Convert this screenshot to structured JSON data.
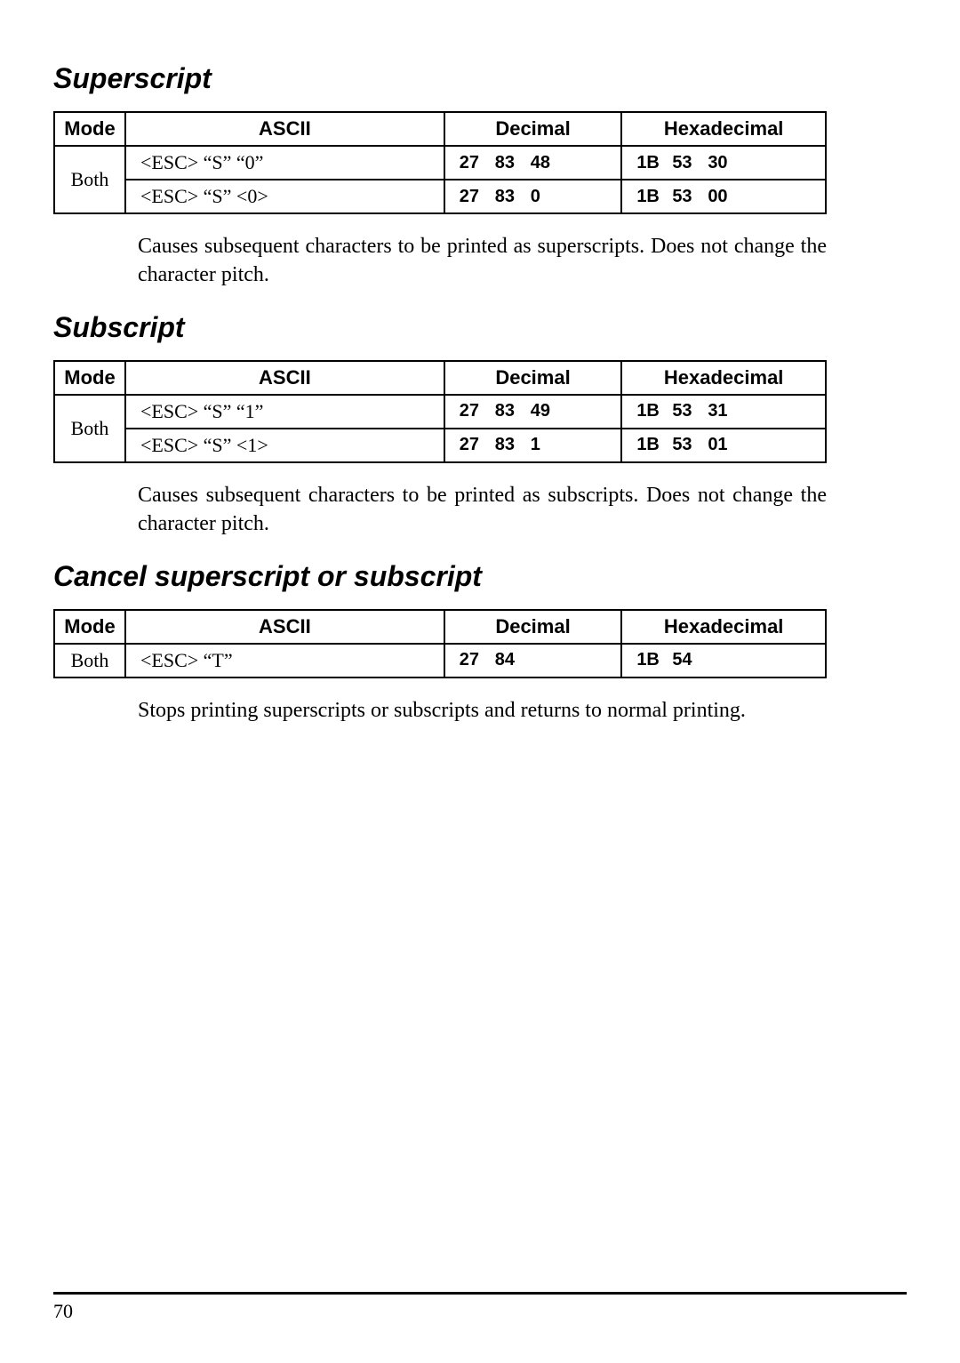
{
  "sections": [
    {
      "heading": "Superscript",
      "table": {
        "headers": {
          "mode": "Mode",
          "ascii": "ASCII",
          "decimal": "Decimal",
          "hex": "Hexadecimal"
        },
        "mode": "Both",
        "rows": [
          {
            "ascii": "<ESC>   “S”   “0”",
            "dec": [
              "27",
              "83",
              "48"
            ],
            "hex": [
              "1B",
              "53",
              "30"
            ]
          },
          {
            "ascii": "<ESC>   “S”   <0>",
            "dec": [
              "27",
              "83",
              "0"
            ],
            "hex": [
              "1B",
              "53",
              "00"
            ]
          }
        ]
      },
      "description": "Causes subsequent characters to be printed as superscripts. Does not change the character pitch."
    },
    {
      "heading": "Subscript",
      "table": {
        "headers": {
          "mode": "Mode",
          "ascii": "ASCII",
          "decimal": "Decimal",
          "hex": "Hexadecimal"
        },
        "mode": "Both",
        "rows": [
          {
            "ascii": "<ESC>   “S”   “1”",
            "dec": [
              "27",
              "83",
              "49"
            ],
            "hex": [
              "1B",
              "53",
              "31"
            ]
          },
          {
            "ascii": "<ESC>   “S”   <1>",
            "dec": [
              "27",
              "83",
              "1"
            ],
            "hex": [
              "1B",
              "53",
              "01"
            ]
          }
        ]
      },
      "description": "Causes subsequent characters to be printed as subscripts. Does not change the character pitch."
    },
    {
      "heading": "Cancel superscript or subscript",
      "table": {
        "headers": {
          "mode": "Mode",
          "ascii": "ASCII",
          "decimal": "Decimal",
          "hex": "Hexadecimal"
        },
        "mode": "Both",
        "rows": [
          {
            "ascii": "<ESC>   “T”",
            "dec": [
              "27",
              "84"
            ],
            "hex": [
              "1B",
              "54"
            ]
          }
        ]
      },
      "description": "Stops printing superscripts or subscripts and returns to normal printing."
    }
  ],
  "page_number": "70"
}
